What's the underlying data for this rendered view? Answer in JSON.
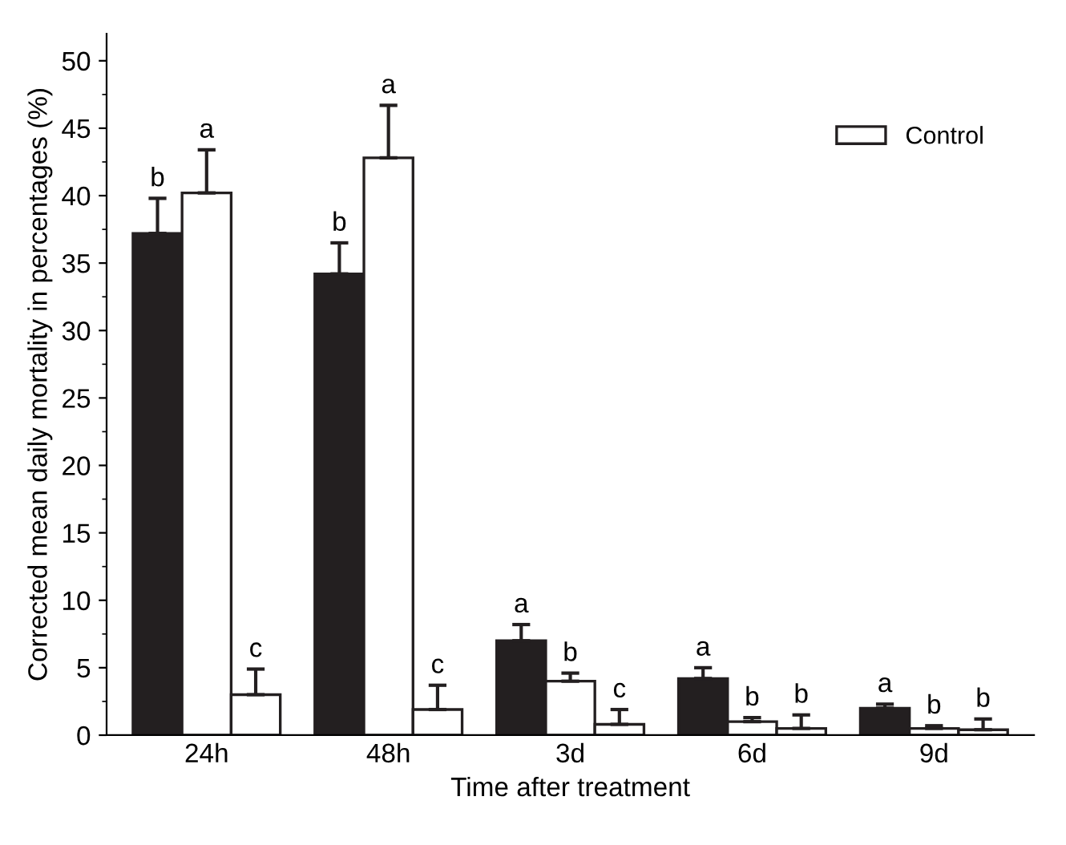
{
  "chart_data": {
    "type": "bar",
    "xlabel": "Time after treatment",
    "ylabel": "Corrected mean daily mortality in percentages (%)",
    "categories": [
      "24h",
      "48h",
      "3d",
      "6d",
      "9d"
    ],
    "series": [
      {
        "color": "#231f20",
        "values": [
          37.2,
          34.2,
          7.0,
          4.2,
          2.0
        ],
        "errors": [
          [
            37.2,
            39.8
          ],
          [
            34.2,
            36.5
          ],
          [
            7.0,
            8.2
          ],
          [
            4.2,
            5.0
          ],
          [
            2.0,
            2.3
          ]
        ],
        "value_labels": [
          "b",
          "b",
          "a",
          "a",
          "a"
        ]
      },
      {
        "color": "#ffffff",
        "values": [
          40.2,
          42.8,
          4.0,
          1.0,
          0.5
        ],
        "errors": [
          [
            40.2,
            43.4
          ],
          [
            42.8,
            46.7
          ],
          [
            4.0,
            4.6
          ],
          [
            1.0,
            1.3
          ],
          [
            0.5,
            0.7
          ]
        ],
        "value_labels": [
          "a",
          "a",
          "b",
          "b",
          "b"
        ]
      },
      {
        "name": "Control",
        "color": "#ffffff",
        "values": [
          3.0,
          1.9,
          0.8,
          0.5,
          0.4
        ],
        "errors": [
          [
            3.0,
            4.9
          ],
          [
            1.9,
            3.7
          ],
          [
            0.8,
            1.9
          ],
          [
            0.5,
            1.5
          ],
          [
            0.4,
            1.2
          ]
        ],
        "value_labels": [
          "c",
          "c",
          "c",
          "b",
          "b"
        ]
      }
    ],
    "ylim": [
      0,
      52
    ],
    "yticks": [
      0,
      5,
      10,
      15,
      20,
      25,
      30,
      35,
      40,
      45,
      50
    ],
    "grid": false,
    "legend": "top right"
  }
}
